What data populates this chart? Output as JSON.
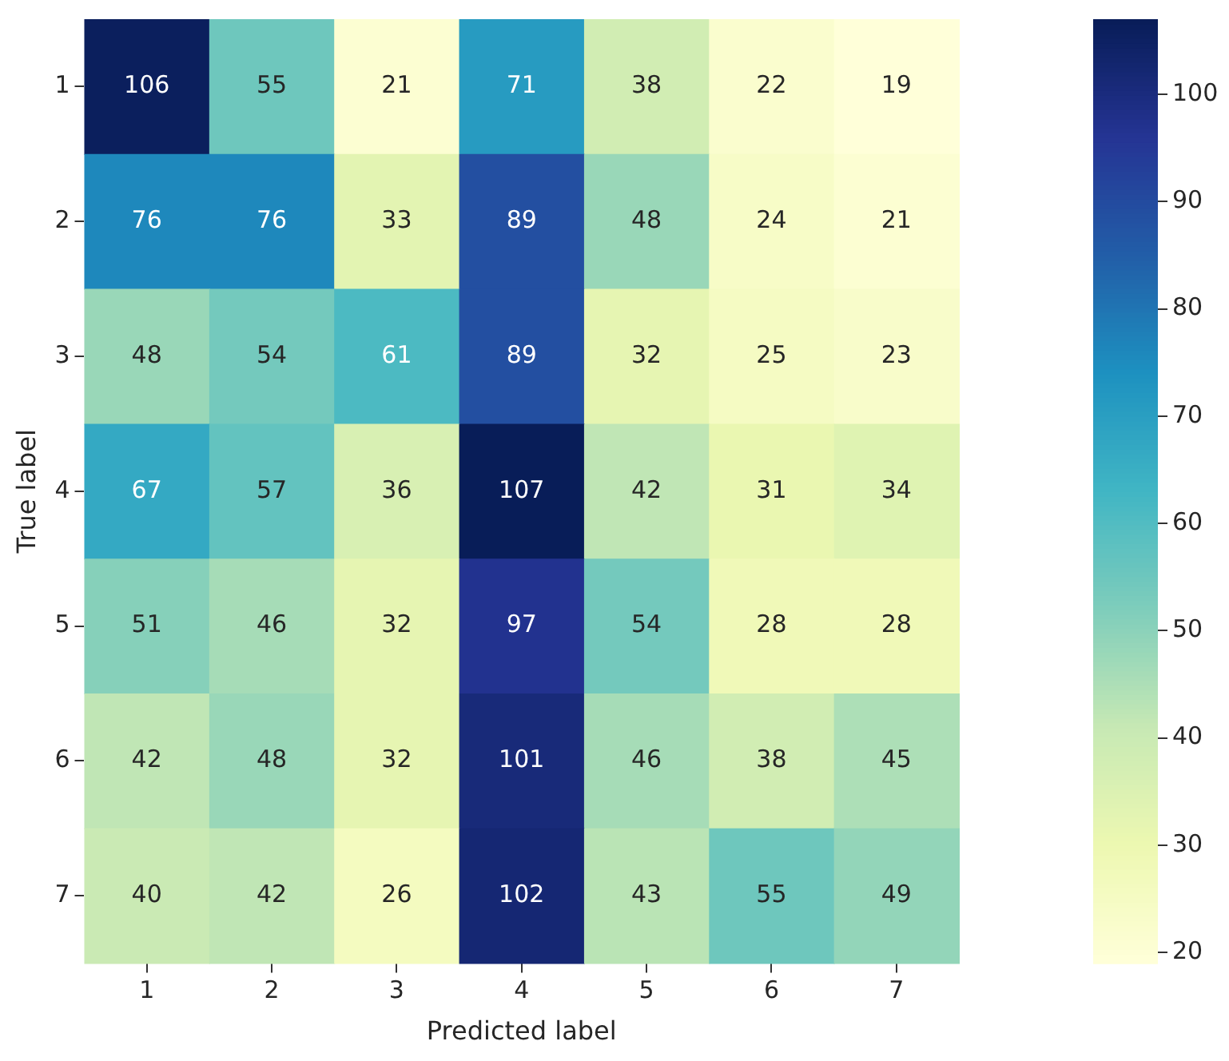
{
  "chart_data": {
    "type": "heatmap",
    "xlabel": "Predicted label",
    "ylabel": "True label",
    "categories": [
      "1",
      "2",
      "3",
      "4",
      "5",
      "6",
      "7"
    ],
    "y_categories": [
      "1",
      "2",
      "3",
      "4",
      "5",
      "6",
      "7"
    ],
    "cells": [
      [
        106,
        55,
        21,
        71,
        38,
        22,
        19
      ],
      [
        76,
        76,
        33,
        89,
        48,
        24,
        21
      ],
      [
        48,
        54,
        61,
        89,
        32,
        25,
        23
      ],
      [
        67,
        57,
        36,
        107,
        42,
        31,
        34
      ],
      [
        51,
        46,
        32,
        97,
        54,
        28,
        28
      ],
      [
        42,
        48,
        32,
        101,
        46,
        38,
        45
      ],
      [
        40,
        42,
        26,
        102,
        43,
        55,
        49
      ]
    ],
    "data_labels": true,
    "clim": [
      19,
      107
    ],
    "cticks": [
      20,
      30,
      40,
      50,
      60,
      70,
      80,
      90,
      100
    ]
  }
}
